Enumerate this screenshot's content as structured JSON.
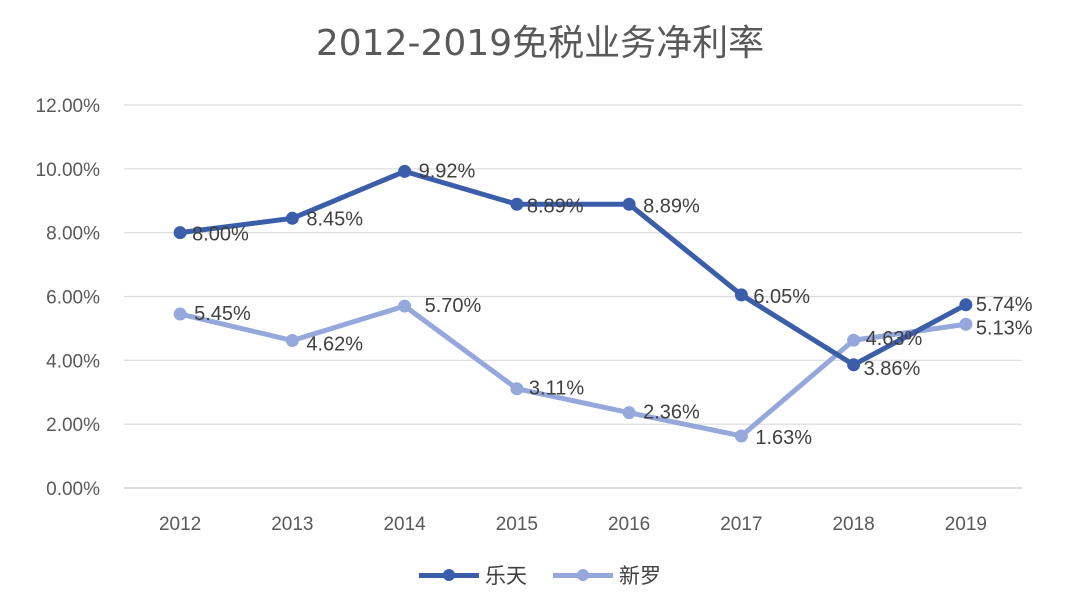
{
  "chart_data": {
    "type": "line",
    "title": "2012-2019免税业务净利率",
    "categories": [
      "2012",
      "2013",
      "2014",
      "2015",
      "2016",
      "2017",
      "2018",
      "2019"
    ],
    "y_ticks": [
      "0.00%",
      "2.00%",
      "4.00%",
      "6.00%",
      "8.00%",
      "10.00%",
      "12.00%"
    ],
    "ylim": [
      0,
      12
    ],
    "grid": true,
    "legend_position": "bottom",
    "series": [
      {
        "name": "乐天",
        "color": "#3a5ea9",
        "values": [
          8.0,
          8.45,
          9.92,
          8.89,
          8.89,
          6.05,
          3.86,
          5.74
        ],
        "labels": [
          "8.00%",
          "8.45%",
          "9.92%",
          "8.89%",
          "8.89%",
          "6.05%",
          "3.86%",
          "5.74%"
        ]
      },
      {
        "name": "新罗",
        "color": "#95a8dc",
        "values": [
          5.45,
          4.62,
          5.7,
          3.11,
          2.36,
          1.63,
          4.63,
          5.13
        ],
        "labels": [
          "5.45%",
          "4.62%",
          "5.70%",
          "3.11%",
          "2.36%",
          "1.63%",
          "4.63%",
          "5.13%"
        ]
      }
    ]
  }
}
